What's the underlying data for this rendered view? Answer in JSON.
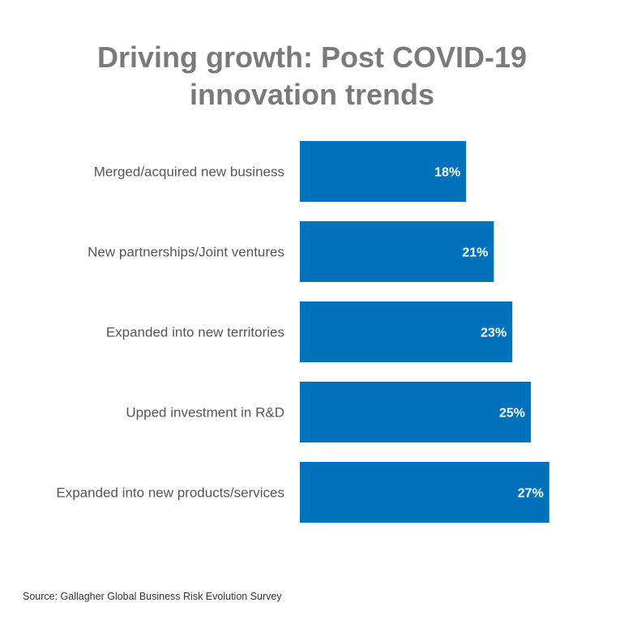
{
  "title": "Driving growth: Post COVID-19 innovation trends",
  "source": "Source: Gallagher Global Business Risk Evolution Survey",
  "colors": {
    "bar": "#0072bc",
    "title": "#7a7a7a",
    "label": "#555555",
    "bar_text": "#ffffff"
  },
  "chart_data": {
    "type": "bar",
    "orientation": "horizontal",
    "title": "Driving growth: Post COVID-19 innovation trends",
    "categories": [
      "Merged/acquired new business",
      "New partnerships/Joint ventures",
      "Expanded into new territories",
      "Upped investment in R&D",
      "Expanded into new products/services"
    ],
    "values": [
      18,
      21,
      23,
      25,
      27
    ],
    "value_labels": [
      "18%",
      "21%",
      "23%",
      "25%",
      "27%"
    ],
    "unit": "%",
    "xlabel": "",
    "ylabel": "",
    "grid": false,
    "legend": "none"
  }
}
